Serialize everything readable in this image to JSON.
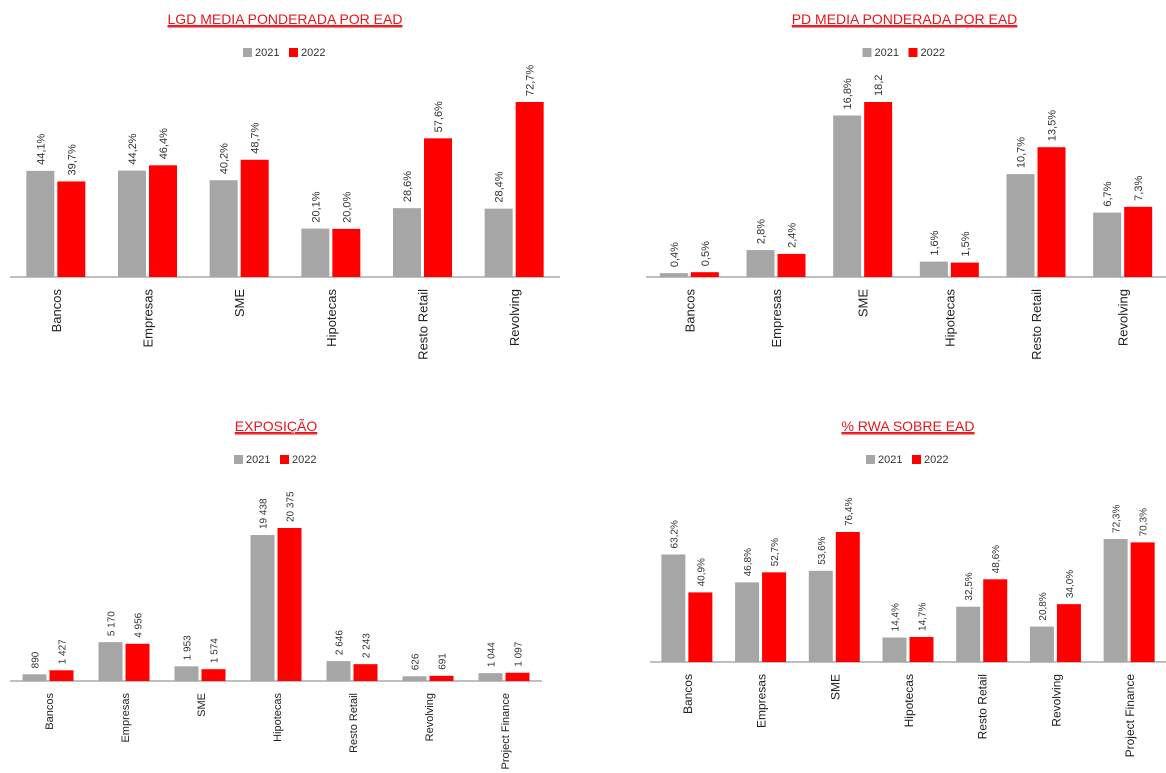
{
  "colors": {
    "y2021": "#a6a6a6",
    "y2022": "#ff0000",
    "title": "#e8151b",
    "axis": "#7f7f7f"
  },
  "chart_data": [
    {
      "type": "bar",
      "title": "LGD MEDIA PONDERADA POR EAD",
      "legend_position": "top-center",
      "categories": [
        "Bancos",
        "Empresas",
        "SME",
        "Hipotecas",
        "Resto Retail",
        "Revolving"
      ],
      "series": [
        {
          "name": "2021",
          "values": [
            44.1,
            44.2,
            40.2,
            20.1,
            28.6,
            28.4
          ],
          "labels": [
            "44,1%",
            "44,2%",
            "40,2%",
            "20,1%",
            "28,6%",
            "28,4%"
          ]
        },
        {
          "name": "2022",
          "values": [
            39.7,
            46.4,
            48.7,
            20.0,
            57.6,
            72.7
          ],
          "labels": [
            "39,7%",
            "46,4%",
            "48,7%",
            "20,0%",
            "57,6%",
            "72,7%"
          ]
        }
      ],
      "ylim": [
        0,
        72.7
      ],
      "grid": false
    },
    {
      "type": "bar",
      "title": "PD MEDIA PONDERADA POR EAD",
      "legend_position": "top-center",
      "categories": [
        "Bancos",
        "Empresas",
        "SME",
        "Hipotecas",
        "Resto Retail",
        "Revolving"
      ],
      "series": [
        {
          "name": "2021",
          "values": [
            0.4,
            2.8,
            16.8,
            1.6,
            10.7,
            6.7
          ],
          "labels": [
            "0,4%",
            "2,8%",
            "16,8%",
            "1,6%",
            "10,7%",
            "6,7%"
          ]
        },
        {
          "name": "2022",
          "values": [
            0.5,
            2.4,
            18.2,
            1.5,
            13.5,
            7.3
          ],
          "labels": [
            "0,5%",
            "2,4%",
            "18,2",
            "1,5%",
            "13,5%",
            "7,3%"
          ]
        }
      ],
      "ylim": [
        0,
        18.2
      ],
      "grid": false
    },
    {
      "type": "bar",
      "title": "EXPOSIÇÃO",
      "legend_position": "top-center",
      "categories": [
        "Bancos",
        "Empresas",
        "SME",
        "Hipotecas",
        "Resto Retail",
        "Revolving",
        "Project Finance"
      ],
      "series": [
        {
          "name": "2021",
          "values": [
            890,
            5170,
            1953,
            19438,
            2646,
            626,
            1044
          ],
          "labels": [
            "890",
            "5 170",
            "1 953",
            "19 438",
            "2 646",
            "626",
            "1 044"
          ]
        },
        {
          "name": "2022",
          "values": [
            1427,
            4956,
            1574,
            20375,
            2243,
            691,
            1097
          ],
          "labels": [
            "1 427",
            "4 956",
            "1 574",
            "20 375",
            "2 243",
            "691",
            "1 097"
          ]
        }
      ],
      "ylim": [
        0,
        20375
      ],
      "grid": false
    },
    {
      "type": "bar",
      "title": "% RWA SOBRE EAD",
      "legend_position": "top-center",
      "categories": [
        "Bancos",
        "Empresas",
        "SME",
        "Hipotecas",
        "Resto Retail",
        "Revolving",
        "Project Finance"
      ],
      "series": [
        {
          "name": "2021",
          "values": [
            63.2,
            46.8,
            53.6,
            14.4,
            32.5,
            20.8,
            72.3
          ],
          "labels": [
            "63,2%",
            "46,8%",
            "53,6%",
            "14,4%",
            "32,5%",
            "20,8%",
            "72,3%"
          ]
        },
        {
          "name": "2022",
          "values": [
            40.9,
            52.7,
            76.4,
            14.7,
            48.6,
            34.0,
            70.3
          ],
          "labels": [
            "40,9%",
            "52,7%",
            "76,4%",
            "14,7%",
            "48,6%",
            "34,0%",
            "70,3%"
          ]
        }
      ],
      "ylim": [
        0,
        76.4
      ],
      "grid": false
    }
  ]
}
